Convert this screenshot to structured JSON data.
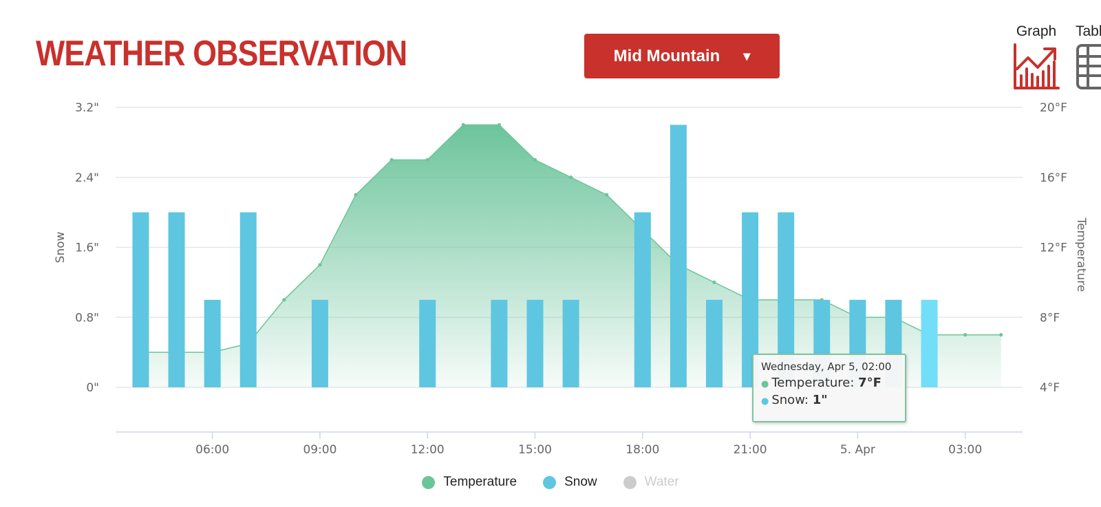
{
  "page": {
    "title": "WEATHER OBSERVATION",
    "station_select": {
      "value": "Mid Mountain",
      "caret": "▾"
    },
    "views": [
      {
        "label": "Graph",
        "icon": "graph-icon"
      },
      {
        "label": "Table",
        "icon": "table-icon"
      }
    ]
  },
  "colors": {
    "brand": "#c8312c",
    "temperature": "#6cc49b",
    "snow": "#5ec6e0",
    "snow_highlight": "#72def7",
    "water": "#cccccc",
    "grid": "#e3e7ec",
    "axis_text": "#666666"
  },
  "chart_data": {
    "type": "bar",
    "x_ticks": [
      "06:00",
      "09:00",
      "12:00",
      "15:00",
      "18:00",
      "21:00",
      "5. Apr",
      "03:00"
    ],
    "x_tick_hours": [
      6,
      9,
      12,
      15,
      18,
      21,
      24,
      27
    ],
    "x_range_hours": [
      3.3,
      28.6
    ],
    "y_left": {
      "label": "Snow",
      "range": [
        0,
        3.2
      ],
      "ticks": [
        0,
        0.8,
        1.6,
        2.4,
        3.2
      ],
      "tick_labels": [
        "0\"",
        "0.8\"",
        "1.6\"",
        "2.4\"",
        "3.2\""
      ]
    },
    "y_right": {
      "label": "Temperature",
      "range": [
        4,
        20
      ],
      "ticks": [
        4,
        8,
        12,
        16,
        20
      ],
      "tick_labels": [
        "4°F",
        "8°F",
        "12°F",
        "16°F",
        "20°F"
      ]
    },
    "series": [
      {
        "name": "Temperature",
        "kind": "area",
        "axis": "right",
        "hours": [
          4,
          5,
          6,
          7,
          8,
          9,
          10,
          11,
          12,
          13,
          14,
          15,
          16,
          17,
          18,
          19,
          20,
          21,
          22,
          23,
          24,
          25,
          26,
          27,
          28
        ],
        "values": [
          6,
          6,
          6,
          6.5,
          9,
          11,
          15,
          17,
          17,
          19,
          19,
          17,
          16,
          15,
          13,
          11,
          10,
          9,
          9,
          9,
          8,
          8,
          7,
          7,
          7
        ]
      },
      {
        "name": "Snow",
        "kind": "column",
        "axis": "left",
        "hours": [
          4,
          5,
          6,
          7,
          9,
          12,
          14,
          15,
          16,
          18,
          19,
          20,
          21,
          22,
          23,
          24,
          25,
          26
        ],
        "values": [
          2,
          2,
          1,
          2,
          1,
          1,
          1,
          1,
          1,
          2,
          3,
          1,
          2,
          2,
          1,
          1,
          1,
          1
        ],
        "highlighted_hour": 26
      },
      {
        "name": "Water",
        "kind": "column",
        "visible": false,
        "hours": [],
        "values": []
      }
    ],
    "legend": [
      {
        "name": "Temperature",
        "visible": true
      },
      {
        "name": "Snow",
        "visible": true
      },
      {
        "name": "Water",
        "visible": false
      }
    ],
    "tooltip": {
      "header": "Wednesday, Apr 5, 02:00",
      "rows": [
        {
          "label": "Temperature: ",
          "value": "7°F"
        },
        {
          "label": "Snow: ",
          "value": "1\""
        }
      ]
    }
  }
}
